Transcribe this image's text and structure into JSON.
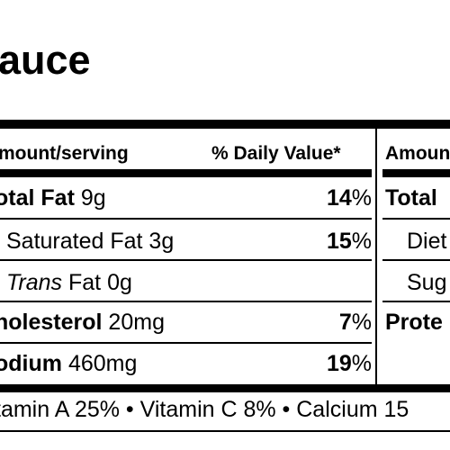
{
  "title": "auce",
  "header": {
    "amount_serving": "mount/serving",
    "daily_value": "% Daily Value*",
    "amount_right": "Amoun"
  },
  "rows": [
    {
      "label": "otal Fat",
      "amount": " 9g",
      "pct_num": "14",
      "pct_sign": "%",
      "right": "Total"
    },
    {
      "label": "Saturated Fat",
      "amount": " 3g",
      "pct_num": "15",
      "pct_sign": "%",
      "right": "Diet"
    },
    {
      "label_italic": "Trans",
      "label": " Fat 0g",
      "right": "Sug"
    },
    {
      "label": "holesterol",
      "amount": " 20mg",
      "pct_num": "7",
      "pct_sign": "%",
      "right": "Prote"
    },
    {
      "label": "odium",
      "amount": " 460mg",
      "pct_num": "19",
      "pct_sign": "%"
    }
  ],
  "vitamins": "tamin A 25% • Vitamin C 8% • Calcium 15"
}
